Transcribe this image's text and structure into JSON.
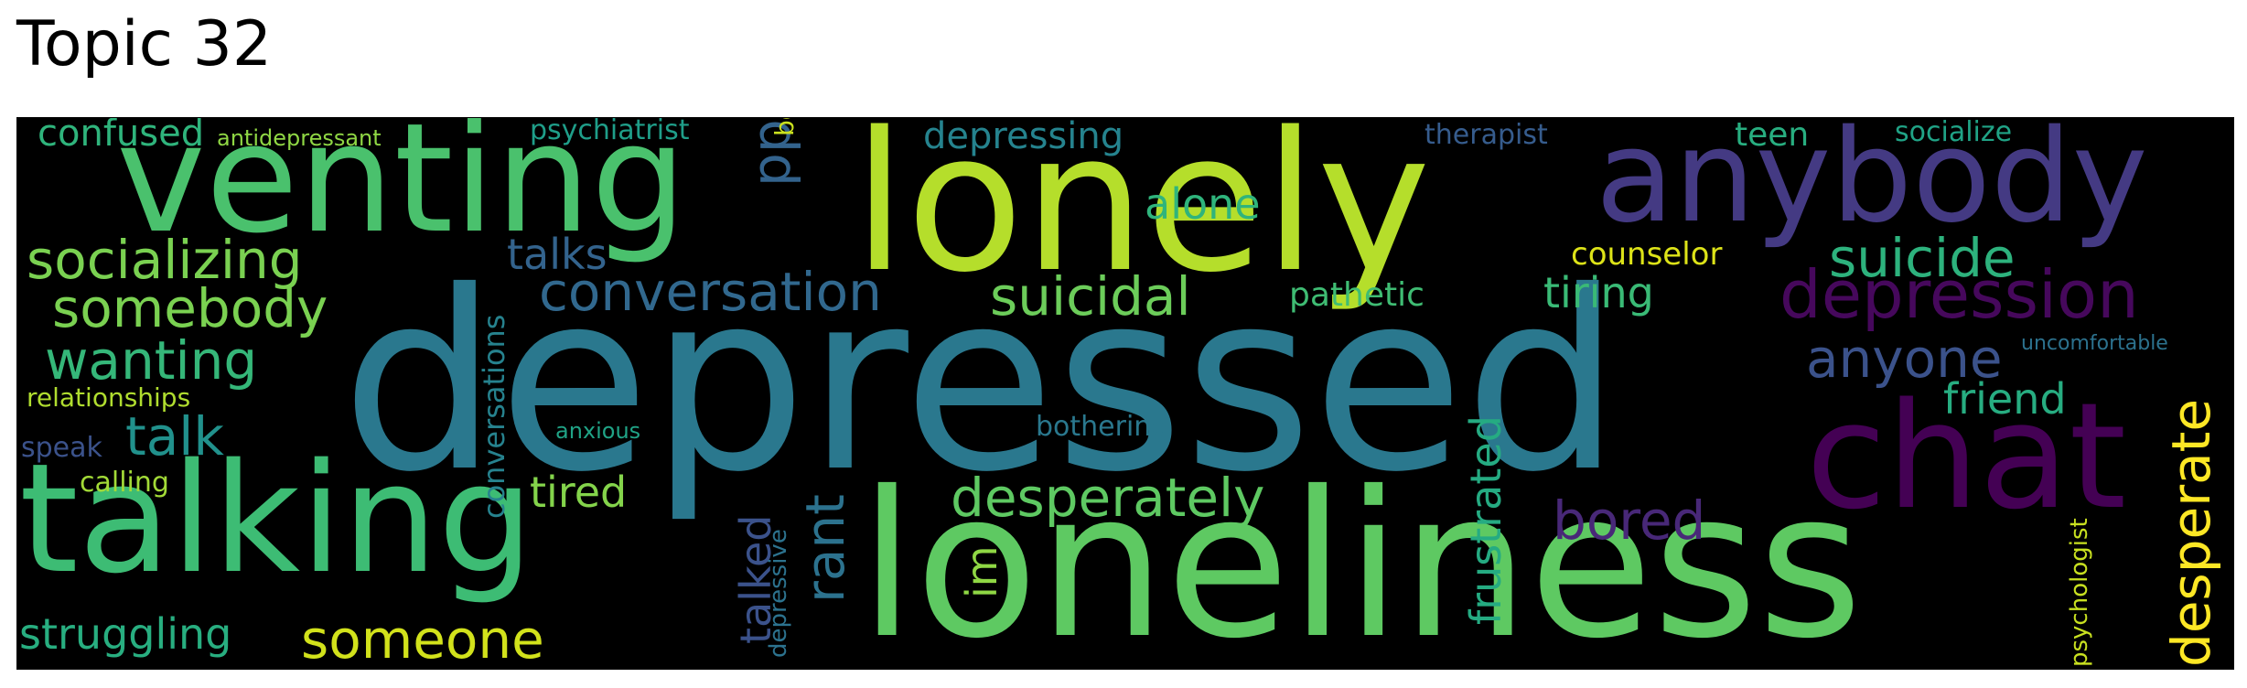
{
  "title": "Topic 32",
  "colors": {
    "background": "#000000"
  },
  "words": [
    {
      "text": "depressed",
      "color": "#2a788e"
    },
    {
      "text": "lonely",
      "color": "#b5de2b"
    },
    {
      "text": "loneliness",
      "color": "#5ec962"
    },
    {
      "text": "venting",
      "color": "#4ac16d"
    },
    {
      "text": "talking",
      "color": "#3dbc74"
    },
    {
      "text": "anybody",
      "color": "#443a83"
    },
    {
      "text": "chat",
      "color": "#440154"
    },
    {
      "text": "depression",
      "color": "#46085c"
    },
    {
      "text": "conversation",
      "color": "#31688e"
    },
    {
      "text": "suicidal",
      "color": "#6ccd5a"
    },
    {
      "text": "desperately",
      "color": "#5ec962"
    },
    {
      "text": "socializing",
      "color": "#7ad151"
    },
    {
      "text": "somebody",
      "color": "#7ad151"
    },
    {
      "text": "wanting",
      "color": "#35b779"
    },
    {
      "text": "suicide",
      "color": "#2db27d"
    },
    {
      "text": "anyone",
      "color": "#3b528b"
    },
    {
      "text": "talk",
      "color": "#21918c"
    },
    {
      "text": "someone",
      "color": "#d2e21b"
    },
    {
      "text": "struggling",
      "color": "#28ae80"
    },
    {
      "text": "bored",
      "color": "#482878"
    },
    {
      "text": "tired",
      "color": "#84d44b"
    },
    {
      "text": "alone",
      "color": "#2fb47c"
    },
    {
      "text": "friend",
      "color": "#27ad81"
    },
    {
      "text": "tiring",
      "color": "#3aba76"
    },
    {
      "text": "rant",
      "color": "#2c728e"
    },
    {
      "text": "ppl",
      "color": "#33638d"
    },
    {
      "text": "talks",
      "color": "#33638d"
    },
    {
      "text": "desperate",
      "color": "#fde725"
    },
    {
      "text": "frustrated",
      "color": "#25ab82"
    },
    {
      "text": "talked",
      "color": "#3b528b"
    },
    {
      "text": "im",
      "color": "#8fd744"
    },
    {
      "text": "conversations",
      "color": "#26828e"
    },
    {
      "text": "confused",
      "color": "#2fb47c"
    },
    {
      "text": "depressing",
      "color": "#25838e"
    },
    {
      "text": "counselor",
      "color": "#dde318"
    },
    {
      "text": "pathetic",
      "color": "#3fbc73"
    },
    {
      "text": "teen",
      "color": "#28ae80"
    },
    {
      "text": "socialize",
      "color": "#20a386"
    },
    {
      "text": "therapist",
      "color": "#365c8d"
    },
    {
      "text": "psychiatrist",
      "color": "#1f9e89"
    },
    {
      "text": "boyfriend",
      "color": "#cae11f"
    },
    {
      "text": "relationships",
      "color": "#b0dd2f"
    },
    {
      "text": "speak",
      "color": "#3b528b"
    },
    {
      "text": "calling",
      "color": "#a2da37"
    },
    {
      "text": "anxious",
      "color": "#20a386"
    },
    {
      "text": "bothering",
      "color": "#2a788e"
    },
    {
      "text": "antidepressant",
      "color": "#8fd744"
    },
    {
      "text": "uncomfortable",
      "color": "#2c728e"
    },
    {
      "text": "psychologist",
      "color": "#c8e020"
    },
    {
      "text": "depressive",
      "color": "#2c728e"
    }
  ]
}
